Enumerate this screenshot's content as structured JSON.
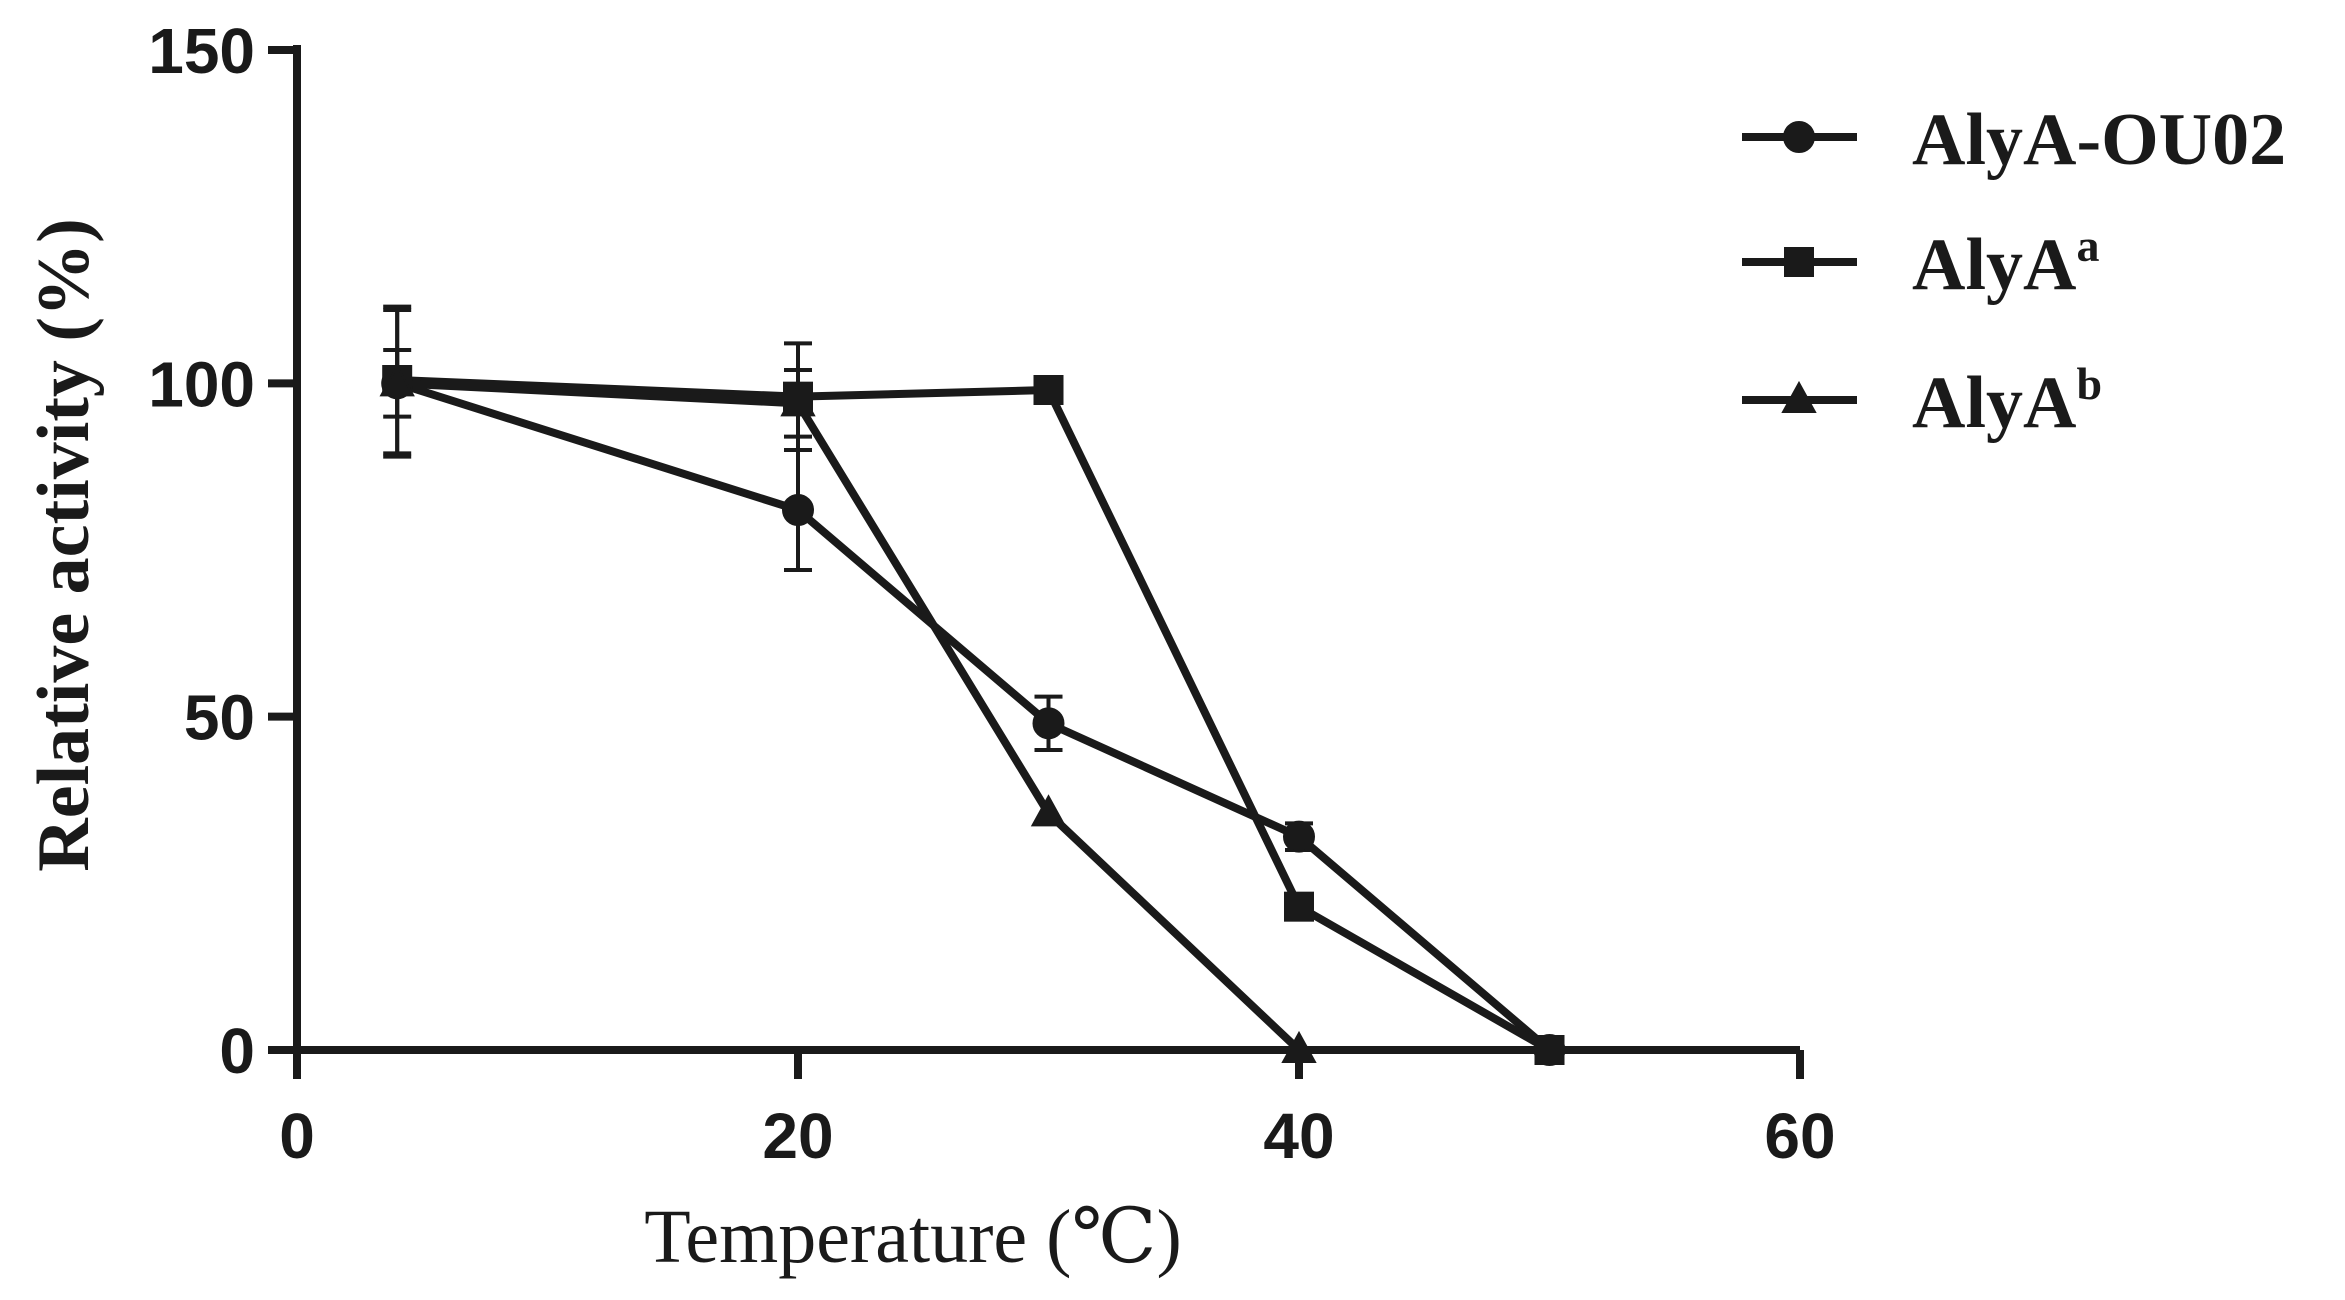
{
  "chart_data": {
    "type": "line",
    "title": "",
    "xlabel": "Temperature (℃)",
    "ylabel": "Relative activity (%)",
    "xlim": [
      0,
      60
    ],
    "ylim": [
      0,
      150
    ],
    "xticks": [
      0,
      20,
      40,
      60
    ],
    "yticks": [
      0,
      50,
      100,
      150
    ],
    "grid": false,
    "legend_position": "top-right, outside plot area",
    "series": [
      {
        "name": "AlyA-OU02",
        "base": "AlyA-OU02",
        "superscript": "",
        "marker": "circle",
        "x": [
          4,
          20,
          30,
          40,
          50
        ],
        "y": [
          100,
          81,
          49,
          32,
          0
        ],
        "error": [
          11,
          9,
          4,
          2,
          0
        ]
      },
      {
        "name": "AlyA^a",
        "base": "AlyA",
        "superscript": "a",
        "marker": "square",
        "x": [
          4,
          20,
          30,
          40,
          50
        ],
        "y": [
          100.5,
          98,
          99,
          21.5,
          0
        ],
        "error": [
          11,
          8,
          0,
          0,
          0
        ]
      },
      {
        "name": "AlyA^b",
        "base": "AlyA",
        "superscript": "b",
        "marker": "triangle",
        "x": [
          4,
          20,
          30,
          40
        ],
        "y": [
          100,
          97,
          35.5,
          0
        ],
        "error": [
          5,
          5,
          0,
          0
        ]
      }
    ]
  },
  "colors": {
    "line": "#1a1a1a",
    "background": "#ffffff"
  }
}
